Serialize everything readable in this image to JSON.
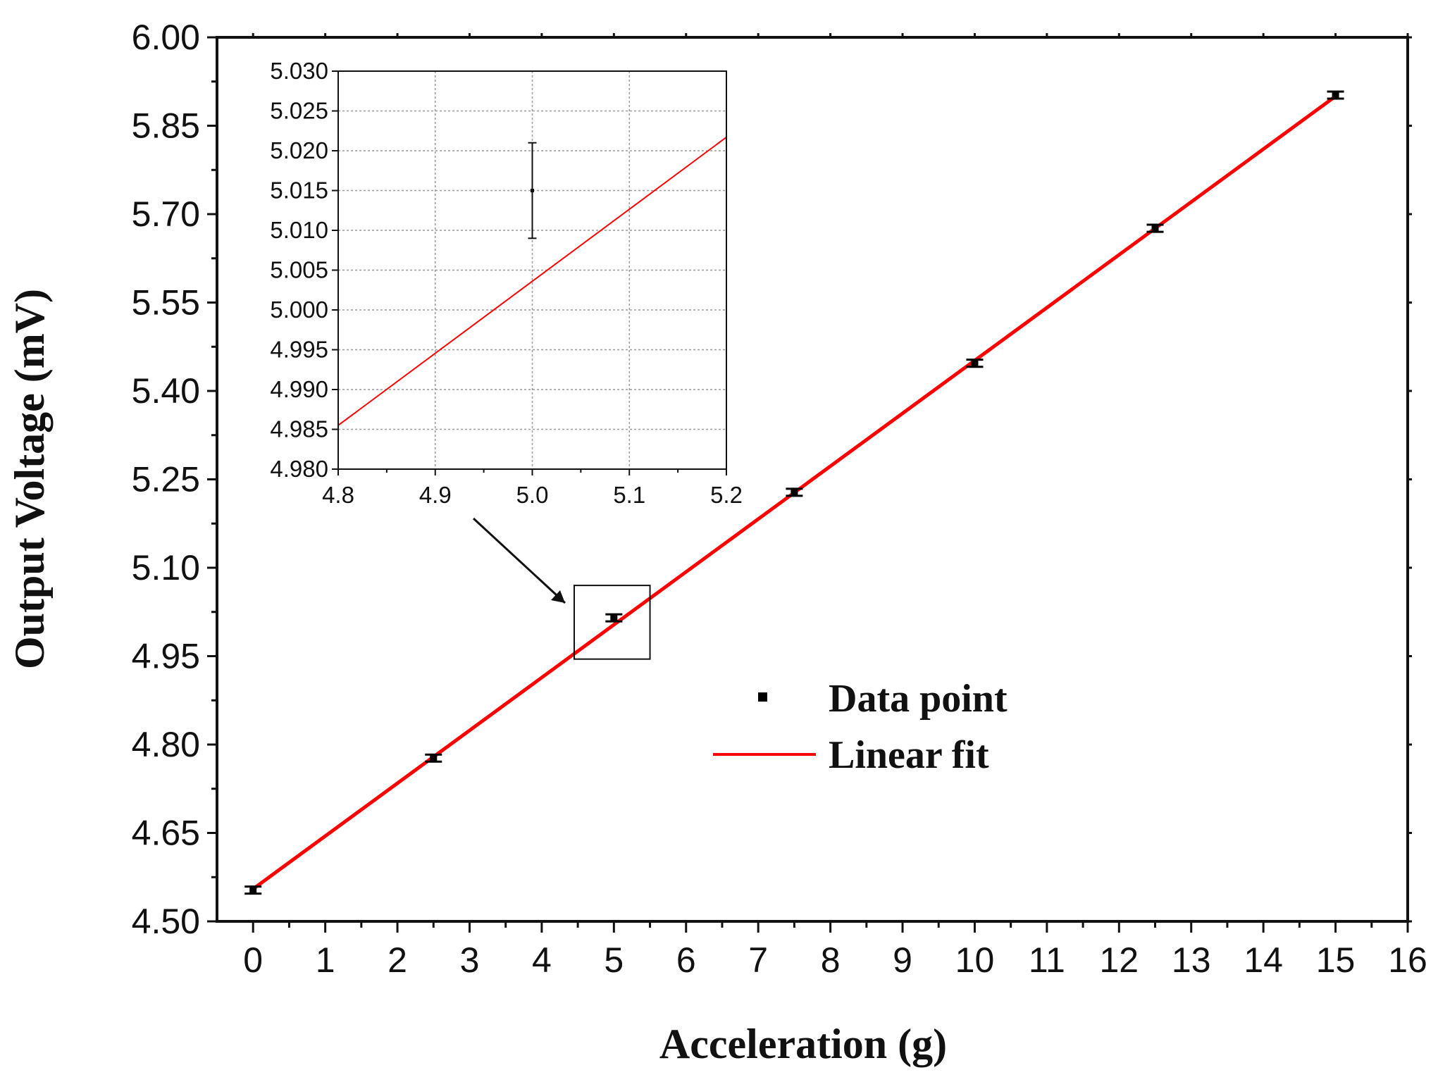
{
  "chart_data": {
    "type": "scatter",
    "xlabel": "Acceleration (g)",
    "ylabel": "Output Voltage (mV)",
    "xlim": [
      -0.5,
      16
    ],
    "ylim": [
      4.5,
      6.0
    ],
    "x_ticks": [
      "0",
      "1",
      "2",
      "3",
      "4",
      "5",
      "6",
      "7",
      "8",
      "9",
      "10",
      "11",
      "12",
      "13",
      "14",
      "15",
      "16"
    ],
    "y_ticks": [
      "4.50",
      "4.65",
      "4.80",
      "4.95",
      "5.10",
      "5.25",
      "5.40",
      "5.55",
      "5.70",
      "5.85",
      "6.00"
    ],
    "grid": false,
    "legend_position": "center-right",
    "series": [
      {
        "name": "Data point",
        "kind": "points-with-error-bars",
        "color": "#000000",
        "x": [
          0,
          2.5,
          5,
          7.5,
          10,
          12.5,
          15
        ],
        "y": [
          4.553,
          4.777,
          5.015,
          5.228,
          5.447,
          5.676,
          5.902
        ],
        "error": [
          0.006,
          0.006,
          0.006,
          0.006,
          0.006,
          0.006,
          0.006
        ]
      },
      {
        "name": "Linear fit",
        "kind": "line",
        "color": "#ff0000",
        "x": [
          0,
          15
        ],
        "y": [
          4.555,
          5.9
        ]
      }
    ],
    "highlight_box": {
      "x": [
        4.45,
        5.5
      ],
      "y": [
        4.945,
        5.07
      ]
    },
    "inset": {
      "xlim": [
        4.8,
        5.2
      ],
      "ylim": [
        4.98,
        5.03
      ],
      "x_ticks": [
        "4.8",
        "4.9",
        "5.0",
        "5.1",
        "5.2"
      ],
      "y_ticks": [
        "4.980",
        "4.985",
        "4.990",
        "4.995",
        "5.000",
        "5.005",
        "5.010",
        "5.015",
        "5.020",
        "5.025",
        "5.030"
      ],
      "grid": true,
      "point": {
        "x": 5.0,
        "y": 5.015,
        "error": 0.006
      },
      "fit_line": {
        "x": [
          4.8,
          5.2
        ],
        "y": [
          4.9855,
          5.0217
        ]
      }
    }
  }
}
